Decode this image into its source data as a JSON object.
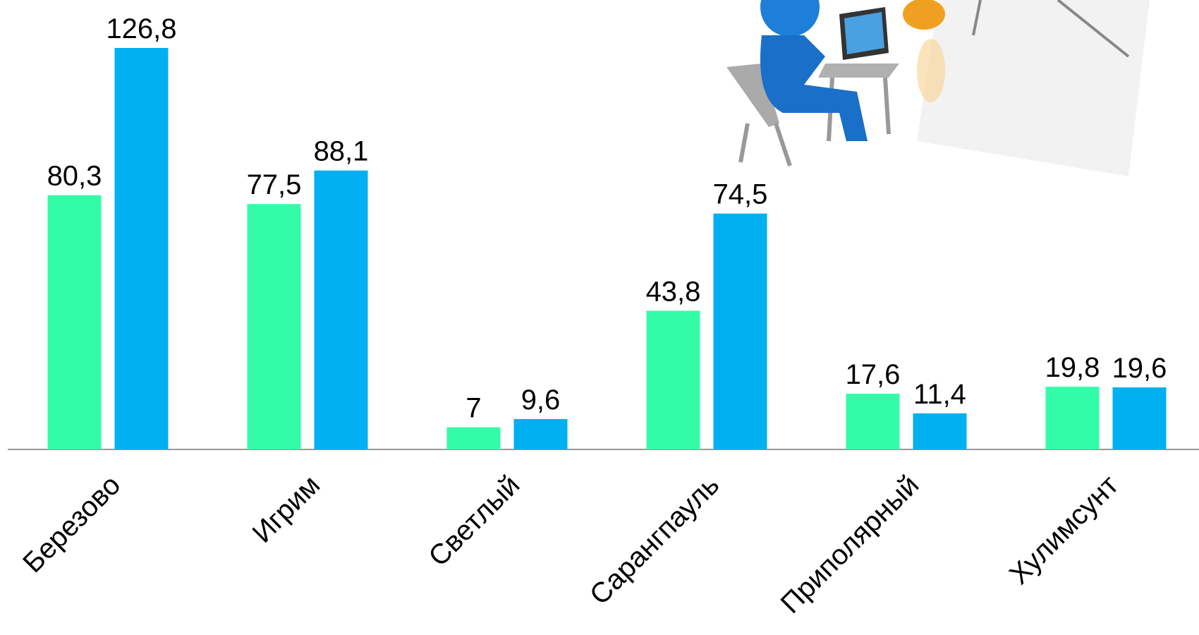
{
  "chart_data": {
    "type": "bar",
    "categories": [
      "Березово",
      "Игрим",
      "Светлый",
      "Сарангпауль",
      "Приполярный",
      "Хулимсунт"
    ],
    "series": [
      {
        "color": "#33fca8",
        "values": [
          80.3,
          77.5,
          7,
          43.8,
          17.6,
          19.8
        ],
        "value_labels": [
          "80,3",
          "77,5",
          "7",
          "43,8",
          "17,6",
          "19,8"
        ]
      },
      {
        "color": "#00b0f0",
        "values": [
          126.8,
          88.1,
          9.6,
          74.5,
          11.4,
          19.6
        ],
        "value_labels": [
          "126,8",
          "88,1",
          "9,6",
          "74,5",
          "11,4",
          "19,6"
        ]
      }
    ]
  }
}
